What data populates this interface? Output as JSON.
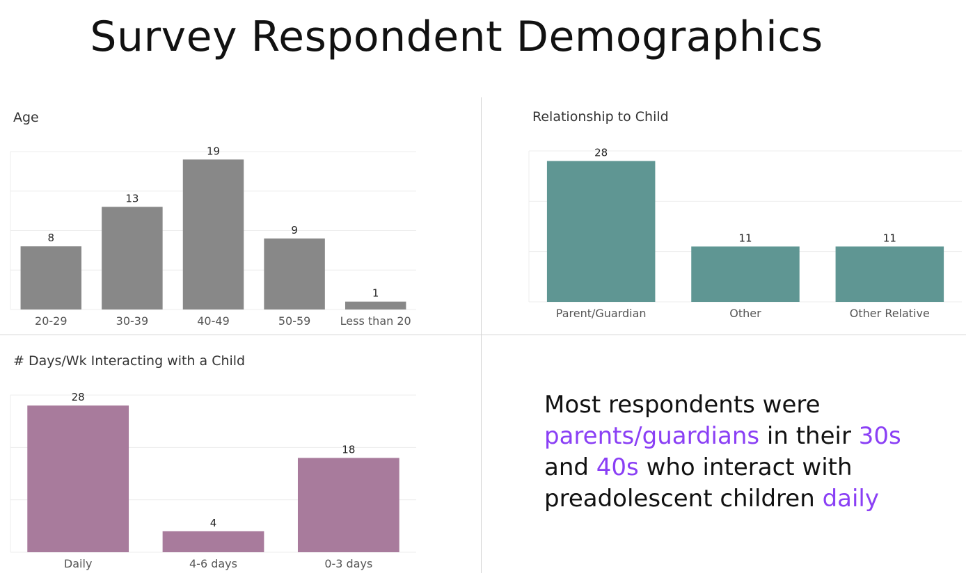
{
  "page": {
    "title": "Survey Respondent Demographics"
  },
  "summary": {
    "t1": "Most respondents were ",
    "h1": "parents/guardians",
    "t2": " in their ",
    "h2": "30s",
    "t3": " and ",
    "h3": "40s",
    "t4": " who interact with preadolescent children ",
    "h4": "daily",
    "highlight_color": "#8a3ff5"
  },
  "chart_data": [
    {
      "type": "bar",
      "title": "Age",
      "categories": [
        "20-29",
        "30-39",
        "40-49",
        "50-59",
        "Less than 20"
      ],
      "values": [
        8,
        13,
        19,
        9,
        1
      ],
      "ylim": [
        0,
        20
      ],
      "grid": true,
      "color": "#888888",
      "xlabel": "",
      "ylabel": ""
    },
    {
      "type": "bar",
      "title": "Relationship to Child",
      "categories": [
        "Parent/Guardian",
        "Other",
        "Other Relative"
      ],
      "values": [
        28,
        11,
        11
      ],
      "ylim": [
        0,
        30
      ],
      "grid": true,
      "color": "#5f9693",
      "xlabel": "",
      "ylabel": ""
    },
    {
      "type": "bar",
      "title": "# Days/Wk Interacting with a Child",
      "categories": [
        "Daily",
        "4-6 days",
        "0-3 days"
      ],
      "values": [
        28,
        4,
        18
      ],
      "ylim": [
        0,
        30
      ],
      "grid": true,
      "color": "#a87b9c",
      "xlabel": "",
      "ylabel": ""
    }
  ]
}
